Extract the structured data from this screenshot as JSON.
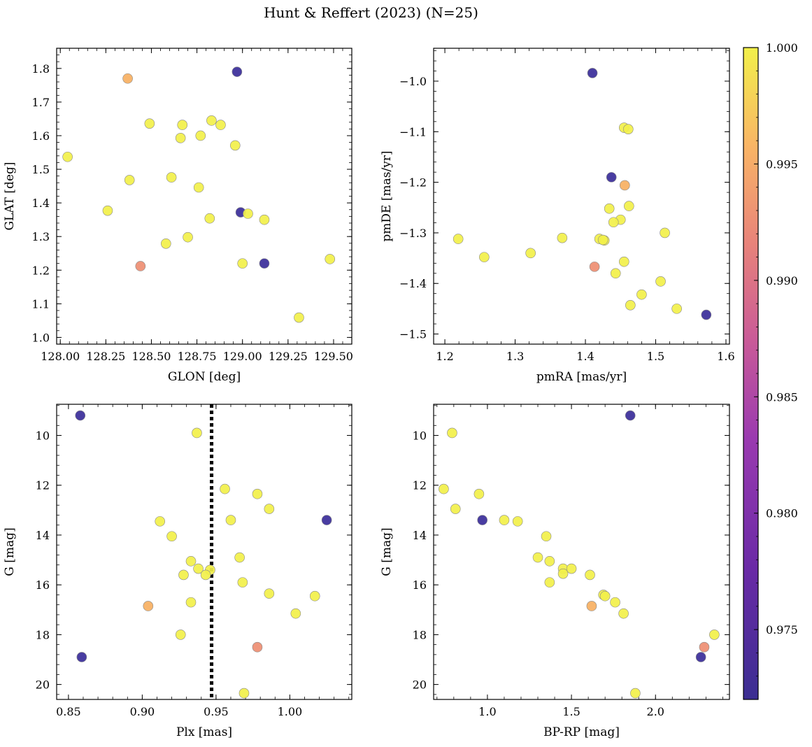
{
  "title": "Hunt & Reffert (2023) (N=25)",
  "colorbar": {
    "ticks": [
      "0.975",
      "0.980",
      "0.985",
      "0.990",
      "0.995",
      "1.000"
    ],
    "range": [
      0.972,
      1.0
    ]
  },
  "chart_data": [
    {
      "type": "scatter",
      "xlabel": "GLON [deg]",
      "ylabel": "GLAT [deg]",
      "xlim": [
        127.98,
        129.6
      ],
      "ylim": [
        0.98,
        1.86
      ],
      "x_ticks": [
        "128.00",
        "128.25",
        "128.50",
        "128.75",
        "129.00",
        "129.25",
        "129.50"
      ],
      "y_ticks": [
        "1.0",
        "1.1",
        "1.2",
        "1.3",
        "1.4",
        "1.5",
        "1.6",
        "1.7",
        "1.8"
      ],
      "x": [
        128.04,
        128.26,
        128.37,
        128.38,
        128.44,
        128.49,
        128.58,
        128.61,
        128.66,
        128.67,
        128.7,
        128.76,
        128.77,
        128.82,
        128.83,
        128.88,
        128.96,
        128.99,
        129.0,
        129.12,
        129.12,
        129.31,
        129.48,
        128.97,
        129.03
      ],
      "y": [
        1.537,
        1.377,
        1.77,
        1.468,
        1.212,
        1.636,
        1.279,
        1.476,
        1.593,
        1.632,
        1.298,
        1.446,
        1.6,
        1.354,
        1.645,
        1.632,
        1.571,
        1.372,
        1.22,
        1.35,
        1.22,
        1.059,
        1.233,
        1.79,
        1.368
      ],
      "c": [
        1.0,
        1.0,
        0.994,
        1.0,
        0.991,
        1.0,
        1.0,
        1.0,
        1.0,
        1.0,
        1.0,
        1.0,
        1.0,
        1.0,
        1.0,
        1.0,
        1.0,
        0.972,
        1.0,
        1.0,
        0.972,
        1.0,
        1.0,
        0.972,
        1.0
      ]
    },
    {
      "type": "scatter",
      "xlabel": "pmRA [mas/yr]",
      "ylabel": "pmDE [mas/yr]",
      "xlim": [
        1.184,
        1.605
      ],
      "ylim": [
        -1.52,
        -0.935
      ],
      "x_ticks": [
        "1.2",
        "1.3",
        "1.4",
        "1.5",
        "1.6"
      ],
      "y_ticks": [
        "−1.0",
        "−1.1",
        "−1.2",
        "−1.3",
        "−1.4",
        "−1.5"
      ],
      "x": [
        1.41,
        1.455,
        1.461,
        1.437,
        1.456,
        1.462,
        1.434,
        1.45,
        1.44,
        1.513,
        1.219,
        1.42,
        1.427,
        1.367,
        1.256,
        1.322,
        1.455,
        1.413,
        1.443,
        1.507,
        1.48,
        1.464,
        1.53,
        1.572,
        1.425
      ],
      "y": [
        -0.984,
        -1.092,
        -1.095,
        -1.19,
        -1.206,
        -1.247,
        -1.252,
        -1.274,
        -1.279,
        -1.3,
        -1.312,
        -1.312,
        -1.315,
        -1.31,
        -1.348,
        -1.34,
        -1.357,
        -1.367,
        -1.38,
        -1.396,
        -1.422,
        -1.443,
        -1.45,
        -1.462,
        -1.314
      ],
      "c": [
        0.972,
        1.0,
        1.0,
        0.972,
        0.994,
        1.0,
        1.0,
        1.0,
        1.0,
        1.0,
        1.0,
        1.0,
        1.0,
        1.0,
        1.0,
        1.0,
        1.0,
        0.991,
        1.0,
        1.0,
        1.0,
        1.0,
        1.0,
        0.972,
        1.0
      ]
    },
    {
      "type": "scatter",
      "xlabel": "Plx [mas]",
      "ylabel": "G [mag]",
      "xlim": [
        0.842,
        1.042
      ],
      "ylim": [
        20.6,
        8.75
      ],
      "y_inverted": true,
      "vline": 0.947,
      "x_ticks": [
        "0.85",
        "0.90",
        "0.95",
        "1.00"
      ],
      "y_ticks": [
        "10",
        "12",
        "14",
        "16",
        "18",
        "20"
      ],
      "x": [
        0.858,
        0.937,
        0.956,
        0.978,
        0.986,
        1.025,
        0.912,
        0.96,
        0.92,
        0.966,
        0.933,
        0.938,
        0.946,
        0.928,
        0.943,
        0.968,
        0.986,
        1.017,
        0.904,
        0.933,
        1.004,
        0.926,
        0.978,
        0.859,
        0.969
      ],
      "y": [
        9.2,
        9.9,
        12.15,
        12.35,
        12.95,
        13.4,
        13.45,
        13.4,
        14.05,
        14.9,
        15.05,
        15.35,
        15.4,
        15.6,
        15.6,
        15.9,
        16.35,
        16.45,
        16.85,
        16.7,
        17.15,
        18.0,
        18.5,
        18.9,
        20.35
      ],
      "c": [
        0.972,
        1.0,
        1.0,
        1.0,
        1.0,
        0.972,
        1.0,
        1.0,
        1.0,
        1.0,
        1.0,
        1.0,
        1.0,
        1.0,
        1.0,
        1.0,
        1.0,
        1.0,
        0.994,
        1.0,
        1.0,
        1.0,
        0.991,
        0.972,
        1.0
      ]
    },
    {
      "type": "scatter",
      "xlabel": "BP-RP [mag]",
      "ylabel": "G [mag]",
      "xlim": [
        0.68,
        2.44
      ],
      "ylim": [
        20.6,
        8.75
      ],
      "y_inverted": true,
      "x_ticks": [
        "1.0",
        "1.5",
        "2.0"
      ],
      "y_ticks": [
        "10",
        "12",
        "14",
        "16",
        "18",
        "20"
      ],
      "x": [
        1.85,
        0.79,
        0.74,
        0.95,
        0.81,
        0.97,
        1.1,
        1.18,
        1.35,
        1.3,
        1.37,
        1.45,
        1.5,
        1.37,
        1.45,
        1.61,
        1.69,
        1.7,
        1.62,
        1.76,
        1.81,
        2.35,
        2.29,
        2.27,
        1.88
      ],
      "y": [
        9.2,
        9.9,
        12.15,
        12.35,
        12.95,
        13.4,
        13.4,
        13.45,
        14.05,
        14.9,
        15.05,
        15.35,
        15.35,
        15.9,
        15.55,
        15.6,
        16.4,
        16.45,
        16.85,
        16.7,
        17.15,
        18.0,
        18.5,
        18.9,
        20.35
      ],
      "c": [
        0.972,
        1.0,
        1.0,
        1.0,
        1.0,
        0.972,
        1.0,
        1.0,
        1.0,
        1.0,
        1.0,
        1.0,
        1.0,
        1.0,
        1.0,
        1.0,
        1.0,
        1.0,
        0.994,
        1.0,
        1.0,
        1.0,
        0.991,
        0.972,
        1.0
      ]
    }
  ]
}
